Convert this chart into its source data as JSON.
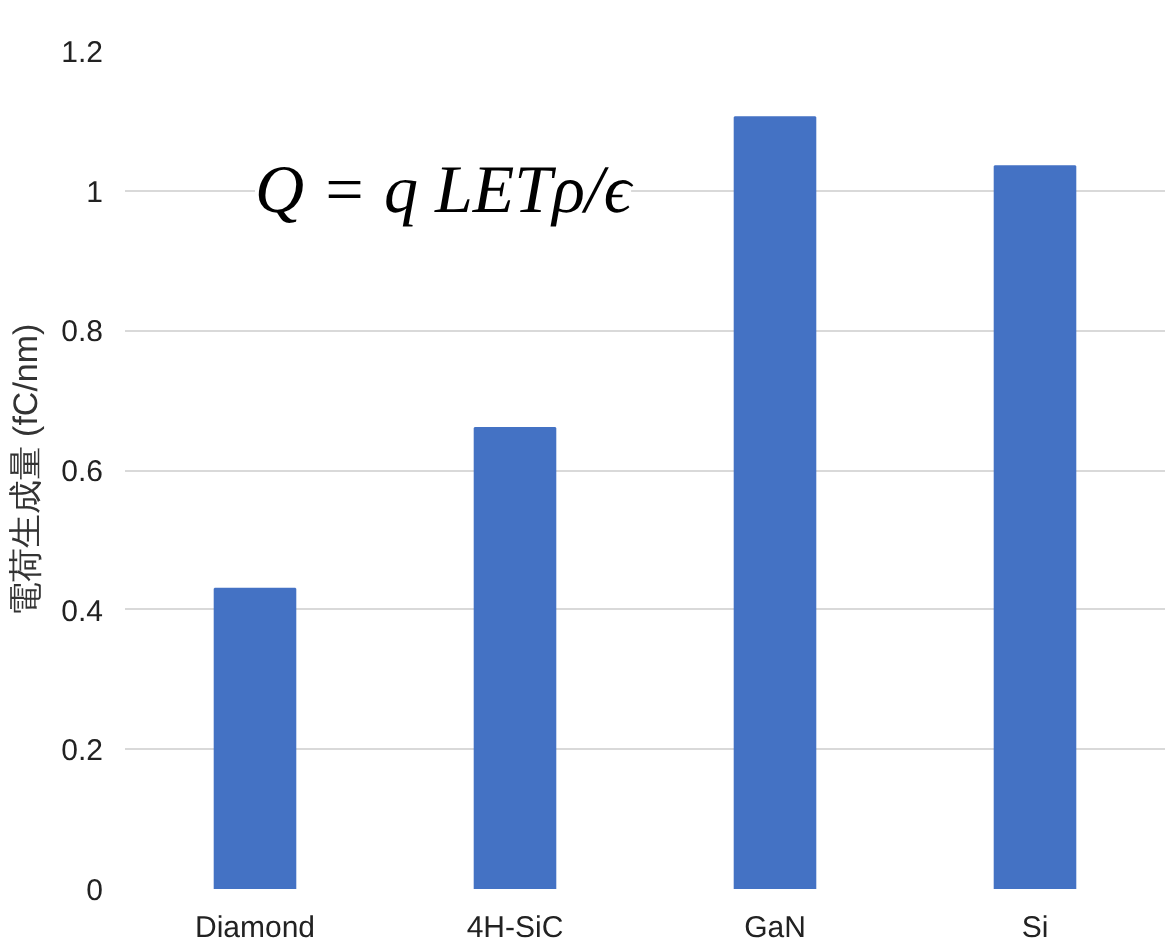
{
  "chart_data": {
    "type": "bar",
    "ylabel": "電荷生成量 (fC/nm)",
    "categories": [
      "Diamond",
      "4H-SiC",
      "GaN",
      "Si"
    ],
    "values": [
      0.43,
      0.66,
      1.105,
      1.035
    ],
    "color": "#4472c4",
    "ylim": [
      0,
      1.2
    ],
    "yticks": [
      0,
      0.2,
      0.4,
      0.6,
      0.8,
      1,
      1.2
    ],
    "grid": "y",
    "annotations": [
      "Q = q LETρ/ϵ"
    ]
  }
}
